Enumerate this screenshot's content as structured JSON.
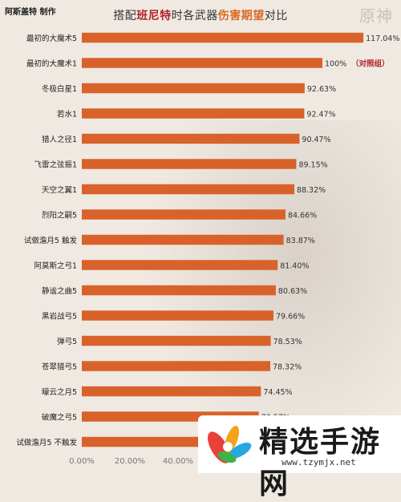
{
  "header": {
    "credit": "阿斯盖特 制作",
    "title_pre": "搭配",
    "title_char": "班尼特",
    "title_mid": "时各武器",
    "title_key": "伤害期望",
    "title_post": "对比",
    "game_logo": "原神"
  },
  "chart_data": {
    "type": "bar",
    "orientation": "horizontal",
    "categories": [
      "最初的大魔术5",
      "最初的大魔术1",
      "冬极白星1",
      "若水1",
      "猎人之径1",
      "飞雷之弦振1",
      "天空之翼1",
      "烈阳之嗣5",
      "试做澹月5 触发",
      "阿莫斯之弓1",
      "静谧之曲5",
      "黑岩战弓5",
      "弹弓5",
      "苍翠猎弓5",
      "曚云之月5",
      "破魔之弓5",
      "试做澹月5 不触发"
    ],
    "values": [
      117.04,
      100,
      92.63,
      92.47,
      90.47,
      89.15,
      88.32,
      84.66,
      83.87,
      81.4,
      80.63,
      79.66,
      78.53,
      78.32,
      74.45,
      73.57,
      null
    ],
    "value_labels": [
      "117.04%",
      "100%",
      "92.63%",
      "92.47%",
      "90.47%",
      "89.15%",
      "88.32%",
      "84.66%",
      "83.87%",
      "81.40%",
      "80.63%",
      "79.66%",
      "78.53%",
      "78.32%",
      "74.45%",
      "73.57%",
      ""
    ],
    "bar_widths_pct": [
      117.04,
      100,
      92.63,
      92.47,
      90.47,
      89.15,
      88.32,
      84.66,
      83.87,
      81.4,
      80.63,
      79.66,
      78.53,
      78.32,
      74.45,
      73.57,
      73.0
    ],
    "annotation": {
      "index": 1,
      "text": "（对照组）"
    },
    "x_ticks": [
      "0.00%",
      "20.00%",
      "40.00%"
    ],
    "x_tick_values": [
      0,
      20,
      40
    ],
    "xlim": [
      0,
      120
    ],
    "bar_color": "#d9622a",
    "title": "搭配班尼特时各武器伤害期望对比",
    "xlabel": "",
    "ylabel": ""
  },
  "watermark": {
    "text": "精选手游网",
    "url": "www.tzymjx.net"
  }
}
